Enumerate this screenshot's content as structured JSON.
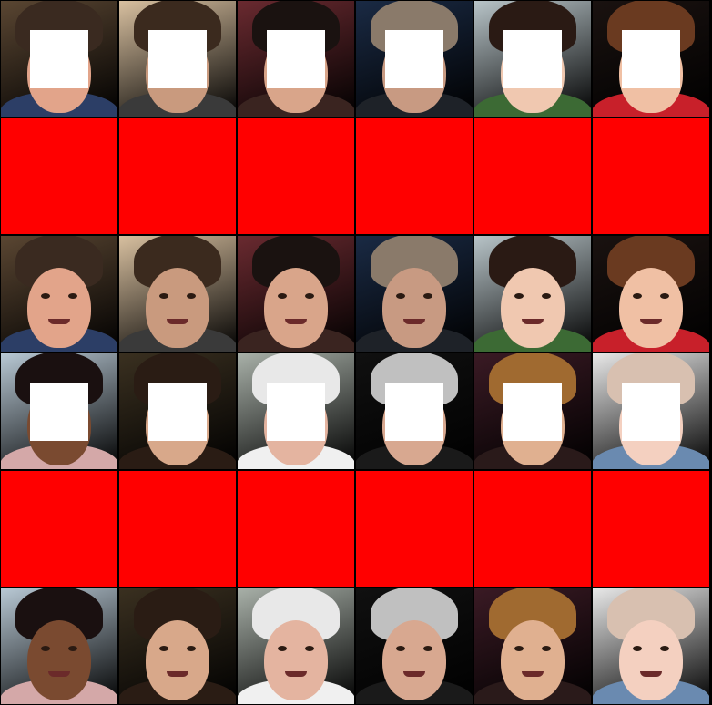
{
  "grid": {
    "columns": 6,
    "rows": 6,
    "mask_color": "#ffffff",
    "placeholder_color": "#ff0000"
  },
  "subjects": [
    {
      "name": "man-glasses",
      "bg": "#5a4632",
      "skin": "#e2a48a",
      "hair": "#3a2a20",
      "body": "#2c3e66"
    },
    {
      "name": "man-beard",
      "bg": "#d8c0a0",
      "skin": "#c99a7e",
      "hair": "#3b2a1e",
      "body": "#3a3a3a"
    },
    {
      "name": "woman-smiling",
      "bg": "#6a2a30",
      "skin": "#d9a58a",
      "hair": "#1a1210",
      "body": "#3a2420"
    },
    {
      "name": "older-man",
      "bg": "#1a2a44",
      "skin": "#c89a82",
      "hair": "#8a7a6a",
      "body": "#1e2228"
    },
    {
      "name": "woman-strawberry",
      "bg": "#b8c4c8",
      "skin": "#f0c8b0",
      "hair": "#2a1a14",
      "body": "#3c6a34"
    },
    {
      "name": "baby-bib",
      "bg": "#1a1210",
      "skin": "#f0c0a4",
      "hair": "#6a3a20",
      "body": "#c8202a"
    },
    {
      "name": "girl-dark-skin",
      "bg": "#b8c8d4",
      "skin": "#7a4a30",
      "hair": "#1a1010",
      "body": "#d4a8a8"
    },
    {
      "name": "girl-long-hair",
      "bg": "#3a3020",
      "skin": "#d8a88a",
      "hair": "#2a1c14",
      "body": "#2a1c14"
    },
    {
      "name": "elderly-man",
      "bg": "#a8b0a8",
      "skin": "#e4b4a0",
      "hair": "#e8e8e8",
      "body": "#f0f0f0"
    },
    {
      "name": "man-hood",
      "bg": "#101010",
      "skin": "#d8a890",
      "hair": "#c0c0c0",
      "body": "#1a1a1a"
    },
    {
      "name": "woman-bangs",
      "bg": "#3a1a24",
      "skin": "#e0b090",
      "hair": "#a06a30",
      "body": "#2a1a1a"
    },
    {
      "name": "baby-blue-eyes",
      "bg": "#e8e8e8",
      "skin": "#f4d0c0",
      "hair": "#d8c0b0",
      "body": "#6a8ab0"
    }
  ]
}
